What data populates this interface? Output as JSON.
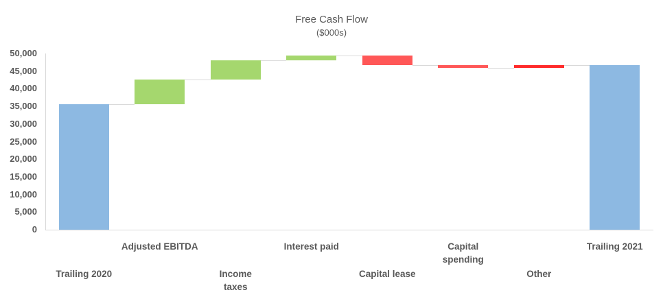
{
  "chart_data": {
    "type": "waterfall",
    "title": "Free Cash Flow",
    "subtitle": "($000s)",
    "xlabel": "",
    "ylabel": "",
    "ylim": [
      0,
      50000
    ],
    "y_ticks": [
      "0",
      "5,000",
      "10,000",
      "15,000",
      "20,000",
      "25,000",
      "30,000",
      "35,000",
      "40,000",
      "45,000",
      "50,000"
    ],
    "grid": false,
    "categories": [
      "Trailing 2020",
      "Adjusted EBITDA",
      "Income taxes",
      "Interest paid",
      "Capital lease",
      "Capital spending",
      "Other",
      "Trailing 2021"
    ],
    "values": [
      35600,
      7000,
      5400,
      1400,
      -2700,
      -800,
      700,
      46600
    ],
    "bar_kind": [
      "total",
      "increase",
      "increase",
      "increase",
      "decrease",
      "decrease",
      "adjustment",
      "total"
    ],
    "colors": {
      "total": "#8db9e2",
      "increase": "#a5d76e",
      "decrease": "#ff5757",
      "adjustment": "#ff2a2a"
    }
  }
}
